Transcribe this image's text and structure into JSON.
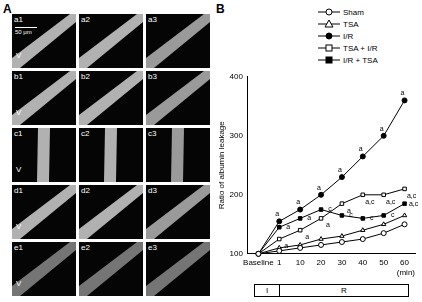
{
  "panels": {
    "a": {
      "label": "A",
      "scale_bar": "50 μm",
      "vessel_label": "V",
      "images": [
        [
          "a1",
          "a2",
          "a3"
        ],
        [
          "b1",
          "b2",
          "b3"
        ],
        [
          "c1",
          "c2",
          "c3"
        ],
        [
          "d1",
          "d2",
          "d3"
        ],
        [
          "e1",
          "e2",
          "e3"
        ]
      ]
    },
    "b": {
      "label": "B"
    }
  },
  "chart_data": {
    "type": "line",
    "y_label": "Ratio of albumin leakage",
    "x_label": "(min)",
    "categories": [
      "Baseline",
      "1",
      "10",
      "20",
      "30",
      "40",
      "50",
      "60"
    ],
    "ylim": [
      100,
      400
    ],
    "yticks": [
      100,
      200,
      300,
      400
    ],
    "grid": false,
    "legend": "top-right",
    "phases": [
      "I",
      "R"
    ],
    "series": [
      {
        "name": "Sham",
        "color": "#000000",
        "marker": "open_circle",
        "values": [
          100,
          105,
          110,
          115,
          120,
          125,
          135,
          150
        ],
        "point_labels": [
          null,
          null,
          null,
          null,
          null,
          null,
          null,
          null
        ]
      },
      {
        "name": "TSA",
        "color": "#000000",
        "marker": "open_triangle",
        "values": [
          100,
          110,
          115,
          125,
          130,
          140,
          150,
          165
        ],
        "point_labels": [
          null,
          null,
          null,
          null,
          null,
          null,
          null,
          null
        ]
      },
      {
        "name": "I/R",
        "color": "#000000",
        "marker": "filled_circle",
        "values": [
          100,
          155,
          175,
          200,
          230,
          265,
          300,
          360
        ],
        "point_labels": [
          null,
          "a",
          "a",
          "a",
          "a",
          "a",
          "a",
          "a"
        ]
      },
      {
        "name": "TSA + I/R",
        "color": "#000000",
        "marker": "open_square",
        "values": [
          100,
          125,
          140,
          160,
          185,
          200,
          200,
          210
        ],
        "point_labels": [
          null,
          "a",
          "a",
          "a",
          "a",
          "a,c",
          "a,c",
          "a,c"
        ]
      },
      {
        "name": "I/R + TSA",
        "color": "#000000",
        "marker": "filled_square",
        "values": [
          100,
          145,
          160,
          175,
          165,
          160,
          165,
          185
        ],
        "point_labels": [
          null,
          "a",
          "a",
          "c",
          "c",
          "c",
          "c",
          "a,c"
        ]
      }
    ]
  }
}
